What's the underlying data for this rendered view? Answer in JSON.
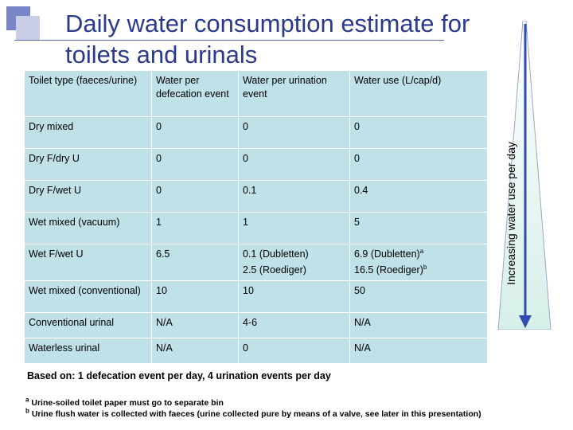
{
  "title_line1": "Daily water consumption estimate for",
  "title_line2": "toilets and urinals",
  "side_label": "Increasing water use per day",
  "table": {
    "headers": [
      "Toilet type (faeces/urine)",
      "Water per defecation event",
      "Water per urination event",
      "Water use (L/cap/d)"
    ],
    "rows": [
      [
        "Dry mixed",
        "0",
        "0",
        "0"
      ],
      [
        "Dry F/dry U",
        "0",
        "0",
        "0"
      ],
      [
        "Dry F/wet U",
        "0",
        "0.1",
        "0.4"
      ],
      [
        "Wet mixed (vacuum)",
        "1",
        "1",
        "5"
      ],
      [
        "Wet F/wet U",
        "6.5",
        "0.1 (Dubletten)",
        "6.9 (Dubletten)"
      ],
      [
        "",
        "",
        "2.5 (Roediger)",
        "16.5 (Roediger)"
      ],
      [
        "Wet mixed (conventional)",
        "10",
        "10",
        "50"
      ],
      [
        "Conventional urinal",
        "N/A",
        "4-6",
        "N/A"
      ],
      [
        "Waterless urinal",
        "N/A",
        "0",
        "N/A"
      ]
    ],
    "sup_a": "a",
    "sup_b": "b"
  },
  "based_on": "Based on: 1 defecation event per day, 4 urination events per day",
  "footnotes": {
    "a_mark": "a",
    "a_text": "Urine-soiled toilet paper must go to separate bin",
    "b_mark": "b",
    "b_text": "Urine flush water is collected with faeces (urine collected pure by means of a valve, see later in this presentation)"
  },
  "colors": {
    "title": "#2b3a8c",
    "table_bg": "#bfe1e7",
    "arrow": "#2f4db0"
  }
}
